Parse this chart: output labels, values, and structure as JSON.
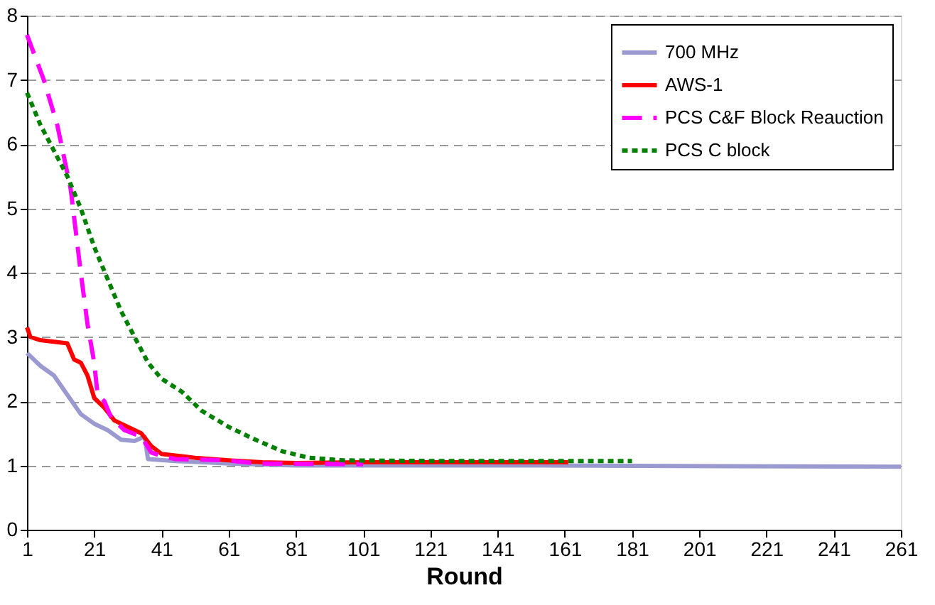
{
  "chart_data": {
    "type": "line",
    "xlabel": "Round",
    "xlim": [
      1,
      261
    ],
    "xticks": [
      1,
      21,
      41,
      61,
      81,
      101,
      121,
      141,
      161,
      181,
      201,
      221,
      241,
      261
    ],
    "ylim": [
      0,
      8
    ],
    "yticks": [
      0,
      1,
      2,
      3,
      4,
      5,
      6,
      7,
      8
    ],
    "grid": "y",
    "legend": "top right",
    "marker": "none",
    "series": [
      {
        "name": "700 MHz",
        "color": "#9a9ad0",
        "line_style": "solid",
        "x": [
          1,
          5,
          9,
          13,
          17,
          21,
          25,
          29,
          33,
          36,
          37,
          45,
          61,
          81,
          150,
          261
        ],
        "values": [
          2.75,
          2.55,
          2.4,
          2.1,
          1.8,
          1.65,
          1.55,
          1.4,
          1.38,
          1.45,
          1.1,
          1.07,
          1.03,
          1.0,
          1.0,
          0.98
        ]
      },
      {
        "name": "AWS-1",
        "color": "#ff0000",
        "line_style": "solid",
        "x": [
          1,
          2,
          5,
          13,
          15,
          17,
          19,
          21,
          24,
          27,
          31,
          35,
          38,
          41,
          46,
          51,
          61,
          71,
          81,
          101,
          121,
          162
        ],
        "values": [
          3.15,
          3.0,
          2.95,
          2.9,
          2.65,
          2.6,
          2.4,
          2.05,
          1.9,
          1.7,
          1.6,
          1.5,
          1.3,
          1.18,
          1.15,
          1.12,
          1.08,
          1.05,
          1.04,
          1.05,
          1.05,
          1.05
        ]
      },
      {
        "name": "PCS C&F Block Reauction",
        "color": "#ff00ff",
        "line_style": "dashed",
        "x": [
          1,
          6,
          10,
          14,
          17,
          19,
          21,
          22,
          24,
          26,
          30,
          35,
          38,
          41,
          45,
          60,
          70,
          101
        ],
        "values": [
          7.7,
          7.0,
          6.3,
          5.3,
          4.0,
          3.2,
          2.6,
          2.1,
          2.0,
          1.75,
          1.55,
          1.45,
          1.2,
          1.15,
          1.1,
          1.08,
          1.03,
          1.02
        ]
      },
      {
        "name": "PCS C block",
        "color": "#008000",
        "line_style": "dotted",
        "x": [
          1,
          5,
          9,
          13,
          17,
          21,
          25,
          29,
          33,
          37,
          41,
          47,
          53,
          61,
          69,
          77,
          85,
          95,
          121,
          181
        ],
        "values": [
          6.8,
          6.3,
          5.9,
          5.5,
          5.0,
          4.4,
          3.9,
          3.4,
          3.0,
          2.6,
          2.35,
          2.15,
          1.85,
          1.6,
          1.4,
          1.22,
          1.12,
          1.08,
          1.07,
          1.07
        ]
      }
    ]
  }
}
